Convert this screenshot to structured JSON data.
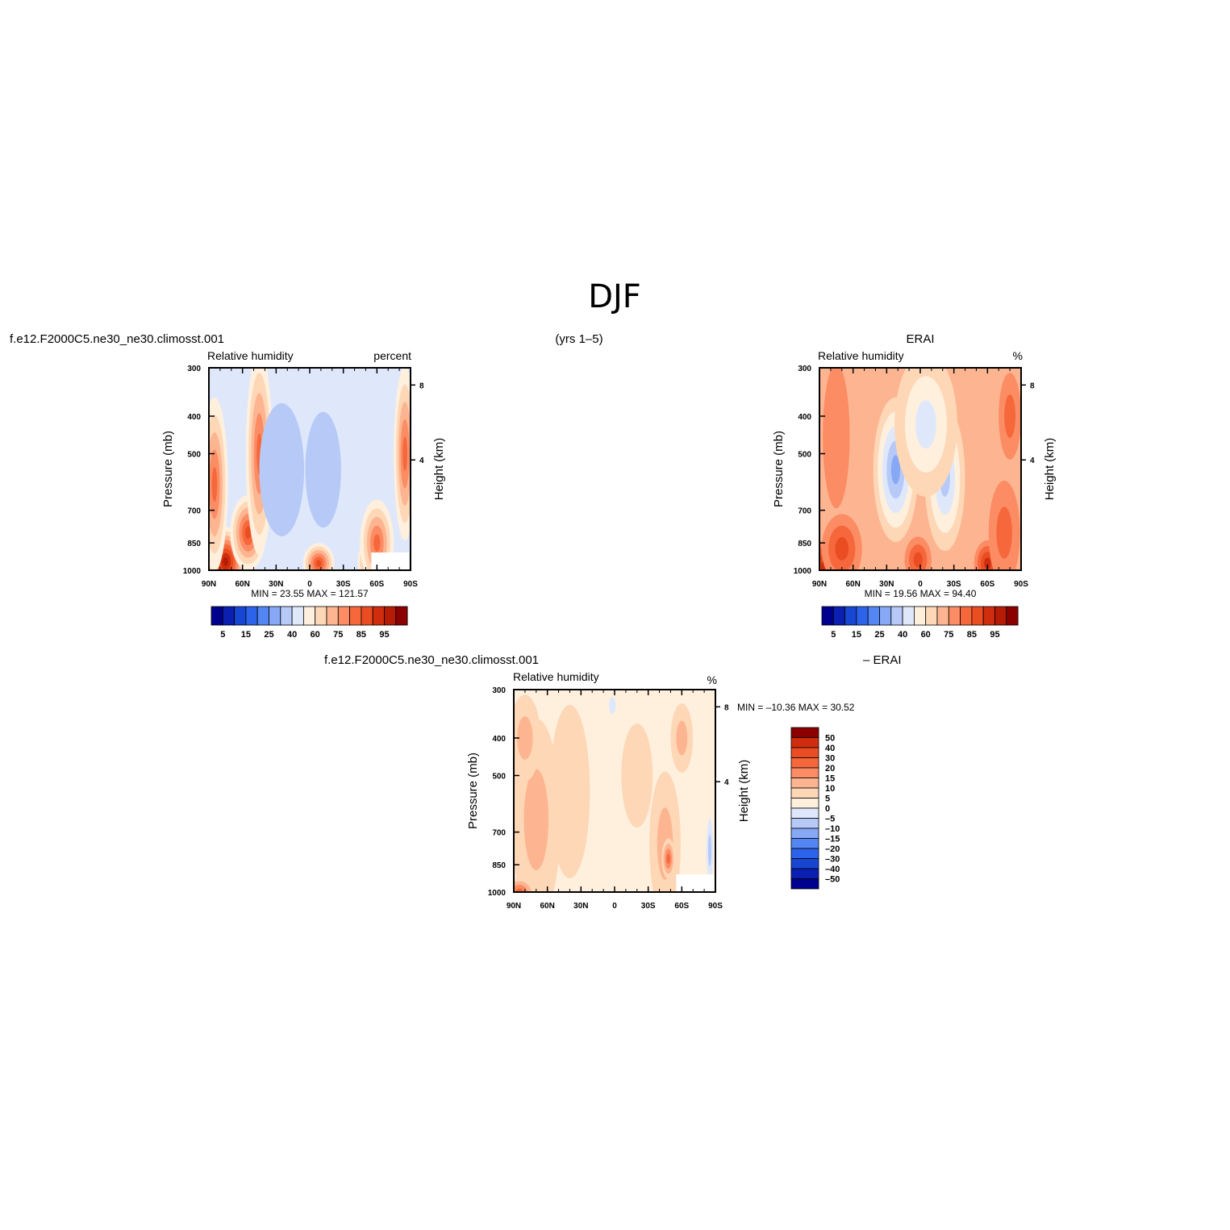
{
  "page": {
    "title": "DJF",
    "left_header": "f.e12.F2000C5.ne30_ne30.climosst.001",
    "center_header": "(yrs 1–5)",
    "right_header": "ERAI",
    "diff_header_left": "f.e12.F2000C5.ne30_ne30.climosst.001",
    "diff_header_right": "– ERAI"
  },
  "colors": {
    "rh_levels": [
      "#00008f",
      "#0b1fb0",
      "#1746d2",
      "#2d63ea",
      "#5386f2",
      "#86a8f5",
      "#b6c9f7",
      "#dfe8fb",
      "#fff0de",
      "#fed7b7",
      "#fdb591",
      "#fb8c63",
      "#f6673c",
      "#ea4d21",
      "#cf2d0d",
      "#b51b05",
      "#8b0000"
    ],
    "diff_levels": [
      "#00008f",
      "#0b1fb0",
      "#1746d2",
      "#2d63ea",
      "#5386f2",
      "#86a8f5",
      "#b6c9f7",
      "#dfe8fb",
      "#fff0de",
      "#fed7b7",
      "#fdb591",
      "#fb8c63",
      "#f6673c",
      "#ea4d21",
      "#cf2d0d",
      "#8b0000"
    ]
  },
  "chart_data": [
    {
      "type": "heatmap",
      "id": "model",
      "title": "Relative humidity",
      "units": "percent",
      "ylabel": "Pressure (mb)",
      "ylabel_right": "Height (km)",
      "x_ticks": [
        "90N",
        "60N",
        "30N",
        "0",
        "30S",
        "60S",
        "90S"
      ],
      "y_ticks": [
        "300",
        "400",
        "500",
        "700",
        "850",
        "1000"
      ],
      "y_ticks_right": [
        "8",
        "4"
      ],
      "stats": {
        "min_label": "MIN =",
        "min": "23.55",
        "max_label": "MAX =",
        "max": "121.57"
      },
      "colorbar_labels": [
        "5",
        "15",
        "25",
        "40",
        "60",
        "75",
        "85",
        "95"
      ],
      "features": [
        {
          "lat": 90,
          "p": 1000,
          "level": 16,
          "sx": 20,
          "sy": 80
        },
        {
          "lat": 75,
          "p": 950,
          "level": 15,
          "sx": 18,
          "sy": 120
        },
        {
          "lat": 55,
          "p": 800,
          "level": 13,
          "sx": 16,
          "sy": 130
        },
        {
          "lat": 45,
          "p": 500,
          "level": 12,
          "sx": 12,
          "sy": 350
        },
        {
          "lat": 85,
          "p": 600,
          "level": 12,
          "sx": 12,
          "sy": 300
        },
        {
          "lat": 22,
          "p": 550,
          "level": 3,
          "sx": 9,
          "sy": 160
        },
        {
          "lat": 25,
          "p": 550,
          "level": 6,
          "sx": 20,
          "sy": 230
        },
        {
          "lat": -12,
          "p": 550,
          "level": 6,
          "sx": 16,
          "sy": 200
        },
        {
          "lat": -5,
          "p": 450,
          "level": 7,
          "sx": 30,
          "sy": 280
        },
        {
          "lat": -8,
          "p": 960,
          "level": 13,
          "sx": 14,
          "sy": 70
        },
        {
          "lat": -55,
          "p": 950,
          "level": 14,
          "sx": 12,
          "sy": 80
        },
        {
          "lat": -60,
          "p": 850,
          "level": 12,
          "sx": 15,
          "sy": 150
        },
        {
          "lat": -85,
          "p": 500,
          "level": 12,
          "sx": 10,
          "sy": 300
        }
      ]
    },
    {
      "type": "heatmap",
      "id": "erai",
      "title": "Relative humidity",
      "units": "%",
      "ylabel": "Pressure (mb)",
      "ylabel_right": "Height (km)",
      "x_ticks": [
        "90N",
        "60N",
        "30N",
        "0",
        "30S",
        "60S",
        "90S"
      ],
      "y_ticks": [
        "300",
        "400",
        "500",
        "700",
        "850",
        "1000"
      ],
      "y_ticks_right": [
        "8",
        "4"
      ],
      "stats": {
        "min_label": "MIN =",
        "min": "19.56",
        "max_label": "MAX =",
        "max": "94.40"
      },
      "colorbar_labels": [
        "5",
        "15",
        "25",
        "40",
        "60",
        "75",
        "85",
        "95"
      ],
      "features": [
        {
          "lat": 85,
          "p": 980,
          "level": 14,
          "sx": 15,
          "sy": 90
        },
        {
          "lat": 70,
          "p": 880,
          "level": 13,
          "sx": 18,
          "sy": 120
        },
        {
          "lat": 75,
          "p": 450,
          "level": 11,
          "sx": 12,
          "sy": 250
        },
        {
          "lat": 20,
          "p": 520,
          "level": 3,
          "sx": 8,
          "sy": 170
        },
        {
          "lat": 22,
          "p": 550,
          "level": 5,
          "sx": 20,
          "sy": 250
        },
        {
          "lat": -22,
          "p": 580,
          "level": 6,
          "sx": 18,
          "sy": 250
        },
        {
          "lat": -5,
          "p": 420,
          "level": 7,
          "sx": 28,
          "sy": 250
        },
        {
          "lat": 2,
          "p": 940,
          "level": 13,
          "sx": 12,
          "sy": 80
        },
        {
          "lat": -60,
          "p": 960,
          "level": 14,
          "sx": 12,
          "sy": 80
        },
        {
          "lat": -75,
          "p": 800,
          "level": 12,
          "sx": 14,
          "sy": 180
        },
        {
          "lat": -80,
          "p": 400,
          "level": 12,
          "sx": 10,
          "sy": 150
        }
      ]
    },
    {
      "type": "heatmap",
      "id": "difference",
      "title": "Relative humidity",
      "units": "%",
      "ylabel": "Pressure (mb)",
      "ylabel_right": "Height (km)",
      "x_ticks": [
        "90N",
        "60N",
        "30N",
        "0",
        "30S",
        "60S",
        "90S"
      ],
      "y_ticks": [
        "300",
        "400",
        "500",
        "700",
        "850",
        "1000"
      ],
      "y_ticks_right": [
        "8",
        "4"
      ],
      "stats": {
        "min_label": "MIN =",
        "min": "–10.36",
        "max_label": "MAX =",
        "max": "30.52"
      },
      "colorbar_labels": [
        "50",
        "40",
        "30",
        "20",
        "15",
        "10",
        "5",
        "0",
        "–5",
        "–10",
        "–15",
        "–20",
        "–30",
        "–40",
        "–50"
      ],
      "features": [
        {
          "lat": 70,
          "p": 650,
          "level": 10,
          "sx": 22,
          "sy": 350
        },
        {
          "lat": 80,
          "p": 400,
          "level": 10,
          "sx": 14,
          "sy": 150
        },
        {
          "lat": 40,
          "p": 550,
          "level": 9,
          "sx": 18,
          "sy": 300
        },
        {
          "lat": -20,
          "p": 500,
          "level": 9,
          "sx": 14,
          "sy": 180
        },
        {
          "lat": -45,
          "p": 750,
          "level": 10,
          "sx": 14,
          "sy": 250
        },
        {
          "lat": -48,
          "p": 820,
          "level": 12,
          "sx": 6,
          "sy": 70
        },
        {
          "lat": -60,
          "p": 400,
          "level": 10,
          "sx": 10,
          "sy": 120
        },
        {
          "lat": -85,
          "p": 780,
          "level": 6,
          "sx": 3,
          "sy": 110
        },
        {
          "lat": 85,
          "p": 1000,
          "level": 12,
          "sx": 14,
          "sy": 50
        },
        {
          "lat": 2,
          "p": 330,
          "level": 7,
          "sx": 3,
          "sy": 30
        }
      ]
    }
  ]
}
